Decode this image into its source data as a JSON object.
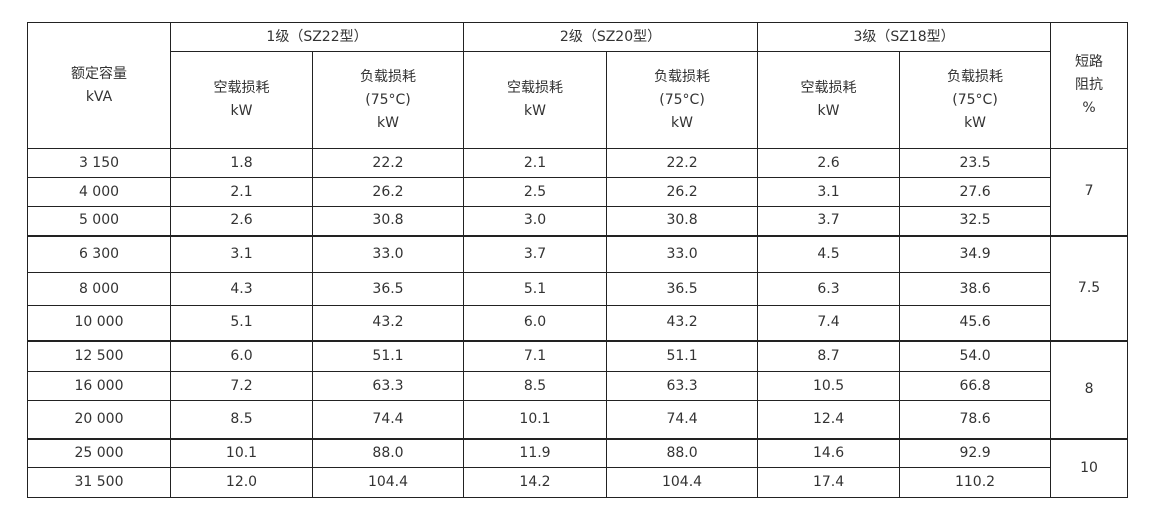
{
  "table": {
    "capacity_header": [
      "额定容量",
      "kVA"
    ],
    "groups": [
      "1级（SZ22型）",
      "2级（SZ20型）",
      "3级（SZ18型）"
    ],
    "no_load_header": [
      "空载损耗",
      "kW"
    ],
    "load_header": [
      "负载损耗",
      "(75°C)",
      "kW"
    ],
    "impedance_header": [
      "短路",
      "阻抗",
      "%"
    ],
    "row_groups": [
      {
        "impedance": "7",
        "rows": [
          [
            "3 150",
            "1.8",
            "22.2",
            "2.1",
            "22.2",
            "2.6",
            "23.5"
          ],
          [
            "4 000",
            "2.1",
            "26.2",
            "2.5",
            "26.2",
            "3.1",
            "27.6"
          ],
          [
            "5 000",
            "2.6",
            "30.8",
            "3.0",
            "30.8",
            "3.7",
            "32.5"
          ]
        ]
      },
      {
        "impedance": "7.5",
        "rows": [
          [
            "6 300",
            "3.1",
            "33.0",
            "3.7",
            "33.0",
            "4.5",
            "34.9"
          ],
          [
            "8 000",
            "4.3",
            "36.5",
            "5.1",
            "36.5",
            "6.3",
            "38.6"
          ],
          [
            "10 000",
            "5.1",
            "43.2",
            "6.0",
            "43.2",
            "7.4",
            "45.6"
          ]
        ]
      },
      {
        "impedance": "8",
        "rows": [
          [
            "12 500",
            "6.0",
            "51.1",
            "7.1",
            "51.1",
            "8.7",
            "54.0"
          ],
          [
            "16 000",
            "7.2",
            "63.3",
            "8.5",
            "63.3",
            "10.5",
            "66.8"
          ],
          [
            "20 000",
            "8.5",
            "74.4",
            "10.1",
            "74.4",
            "12.4",
            "78.6"
          ]
        ]
      },
      {
        "impedance": "10",
        "rows": [
          [
            "25 000",
            "10.1",
            "88.0",
            "11.9",
            "88.0",
            "14.6",
            "92.9"
          ],
          [
            "31 500",
            "12.0",
            "104.4",
            "14.2",
            "104.4",
            "17.4",
            "110.2"
          ]
        ]
      }
    ]
  }
}
